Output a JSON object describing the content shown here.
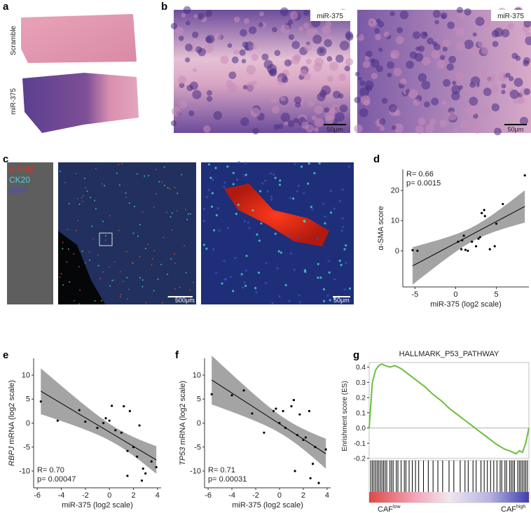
{
  "panels": {
    "a": {
      "letter": "a",
      "labels": [
        "Scramble",
        "miR-375"
      ]
    },
    "b": {
      "letter": "b",
      "labels": [
        "miR-375",
        "miR-375"
      ],
      "scales": [
        "50μm",
        "50μm"
      ]
    },
    "c": {
      "letter": "c",
      "legend": [
        "α-SMA",
        "CK20",
        "DAPI"
      ],
      "scales": [
        "500μm",
        "50μm"
      ]
    },
    "d": {
      "letter": "d"
    },
    "e": {
      "letter": "e"
    },
    "f": {
      "letter": "f"
    },
    "g": {
      "letter": "g"
    }
  },
  "chart_data": [
    {
      "type": "scatter",
      "xlabel": "miR-375 (log2 scale)",
      "ylabel": "α-SMA  score",
      "annotations": [
        "R= 0.66",
        "p= 0.0015"
      ],
      "x": [
        -5.3,
        -4.7,
        0.3,
        0.7,
        0.8,
        1,
        1.2,
        1.5,
        2,
        2.5,
        2.8,
        3,
        3.2,
        3.5,
        3.6,
        4.2,
        4.8,
        5,
        5.8,
        8.5
      ],
      "values": [
        0.2,
        0,
        3,
        0.5,
        3.5,
        5,
        0.3,
        0,
        3,
        1.5,
        4,
        4.5,
        12.5,
        13.5,
        11.5,
        0.5,
        1.5,
        9,
        15.5,
        25
      ],
      "color": "#000000",
      "band_color": "#9a9a9a",
      "xlim": [
        -6.5,
        9
      ],
      "xticks": [
        -5,
        0,
        5
      ],
      "ylim": [
        -12,
        27
      ],
      "yticks": [
        0,
        10,
        20
      ]
    },
    {
      "type": "scatter",
      "xlabel": "miR-375 (log2 scale)",
      "ylabel_gene": "RBPJ",
      "ylabel": " mRNA (log2 scale)",
      "annotations": [
        "R= 0.70",
        "p= 0.00047"
      ],
      "x": [
        -5.7,
        -4.3,
        -2.5,
        -2,
        -1,
        -0.5,
        -0.3,
        0,
        0.2,
        0.5,
        1,
        1.2,
        1.5,
        1.5,
        1.7,
        2,
        2.3,
        2.5,
        2.7,
        2.8,
        3,
        3.5,
        3.9
      ],
      "values": [
        4.5,
        0.5,
        2.7,
        0.3,
        -1,
        0,
        1,
        0.5,
        3.6,
        -1.5,
        -2,
        3.5,
        -5.8,
        -11,
        2.5,
        -5,
        -7,
        -0.5,
        -12,
        -9.5,
        -10.5,
        -8,
        -9.2
      ],
      "color": "#000000",
      "band_color": "#9a9a9a",
      "xlim": [
        -6.3,
        4.3
      ],
      "xticks": [
        -6,
        -4,
        -2,
        0,
        2,
        4
      ],
      "ylim": [
        -13.5,
        13.5
      ],
      "yticks": [
        -10,
        -5,
        0,
        5,
        10
      ]
    },
    {
      "type": "scatter",
      "xlabel": "miR-375 (log2 scale)",
      "ylabel_gene": "TP53",
      "ylabel": " mRNA (log2 scale)",
      "annotations": [
        "R= 0.71",
        "p= 0.00031"
      ],
      "x": [
        -5.7,
        -4,
        -3,
        -2.3,
        -1.3,
        -0.5,
        -0.3,
        0,
        0.3,
        0.5,
        1,
        1.2,
        1.3,
        1.5,
        1.7,
        2,
        2.2,
        2.5,
        2.6,
        2.8,
        3,
        3.3,
        3.9
      ],
      "values": [
        6,
        5.8,
        6.8,
        2,
        -2,
        2.5,
        3,
        0,
        2.5,
        -1,
        3.5,
        4.8,
        -10,
        -2.5,
        1.8,
        -3.5,
        -3,
        2.5,
        -11.5,
        -8.5,
        -5,
        -12.5,
        -5.5
      ],
      "color": "#000000",
      "band_color": "#9a9a9a",
      "xlim": [
        -6.3,
        4.3
      ],
      "xticks": [
        -6,
        -4,
        -2,
        0,
        2,
        4
      ],
      "ylim": [
        -13.5,
        13.5
      ],
      "yticks": [
        -10,
        -5,
        0,
        5,
        10
      ]
    },
    {
      "type": "line",
      "title": "HALLMARK_P53_PATHWAY",
      "ylabel": "Enrishment score (ES)",
      "x": [
        0,
        2,
        4,
        6,
        8,
        10,
        13,
        16,
        20,
        25,
        30,
        35,
        40,
        45,
        50,
        55,
        60,
        65,
        70,
        75,
        80,
        85,
        88,
        90,
        92,
        94,
        96,
        98,
        100
      ],
      "values": [
        0,
        0.3,
        0.38,
        0.41,
        0.42,
        0.41,
        0.4,
        0.41,
        0.39,
        0.35,
        0.31,
        0.27,
        0.22,
        0.18,
        0.13,
        0.09,
        0.05,
        0.01,
        -0.03,
        -0.07,
        -0.11,
        -0.14,
        -0.15,
        -0.16,
        -0.17,
        -0.15,
        -0.16,
        -0.1,
        0
      ],
      "hits": [
        1,
        2,
        3,
        4,
        5,
        6,
        7,
        8,
        9,
        10,
        11,
        13,
        14,
        15,
        17,
        18,
        20,
        22,
        23,
        25,
        27,
        29,
        31,
        34,
        37,
        40,
        43,
        46,
        50,
        53,
        57,
        60,
        62,
        65,
        67,
        70,
        72,
        74,
        76,
        78,
        80,
        82,
        83,
        85,
        86,
        88,
        89,
        90,
        91,
        93,
        94,
        95,
        96,
        97,
        98,
        99
      ],
      "color": "#6abf3a",
      "xlim": [
        0,
        100
      ],
      "ylim": [
        -0.2,
        0.43
      ],
      "yticks": [
        -0.2,
        -0.1,
        {
          "value": 0,
          "label": "0.0"
        },
        0.1,
        0.2,
        0.3,
        0.4
      ],
      "x_label_base": [
        "CAF",
        "CAF"
      ],
      "x_label_sup": [
        "low",
        "high"
      ]
    }
  ]
}
